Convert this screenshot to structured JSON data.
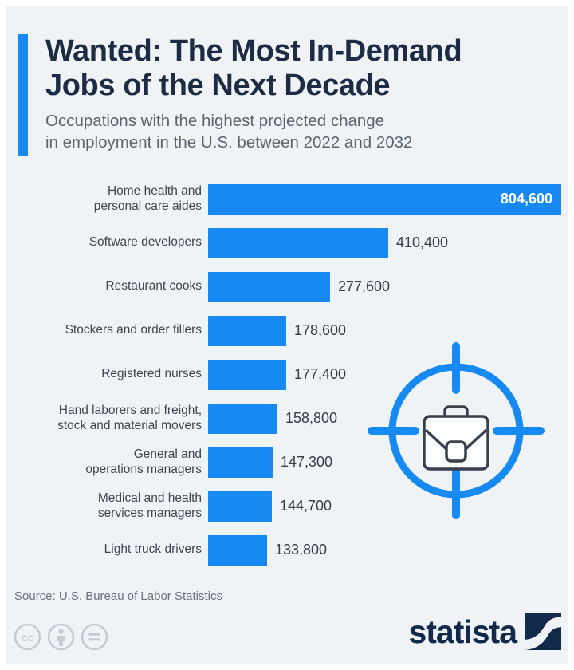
{
  "header": {
    "title": "Wanted: The Most In-Demand\nJobs of the Next Decade",
    "subtitle": "Occupations with the highest projected change\nin employment in the U.S. between 2022 and 2032"
  },
  "chart_data": {
    "type": "bar",
    "orientation": "horizontal",
    "title": "Wanted: The Most In-Demand Jobs of the Next Decade",
    "subtitle": "Occupations with the highest projected change in employment in the U.S. between 2022 and 2032",
    "categories": [
      "Home health and\npersonal care aides",
      "Software developers",
      "Restaurant cooks",
      "Stockers and order fillers",
      "Registered nurses",
      "Hand laborers and freight,\nstock and material movers",
      "General and\noperations managers",
      "Medical and health\nservices managers",
      "Light truck drivers"
    ],
    "values": [
      804600,
      410400,
      277600,
      178600,
      177400,
      158800,
      147300,
      144700,
      133800
    ],
    "value_labels": [
      "804,600",
      "410,400",
      "277,600",
      "178,600",
      "177,400",
      "158,800",
      "147,300",
      "144,700",
      "133,800"
    ],
    "xlabel": "",
    "ylabel": "",
    "xlim": [
      0,
      804600
    ],
    "grid": false,
    "legend": false,
    "bar_color": "#1789f2",
    "value_label_color": "#353d47",
    "value_label_inside_color": "#ffffff"
  },
  "decorations": {
    "icon": "crosshair-target-briefcase-icon",
    "icon_color": "#1789f2",
    "briefcase_outline_color": "#39414c"
  },
  "footer": {
    "source": "Source: U.S. Bureau of Labor Statistics",
    "license_icons": [
      "cc-icon",
      "attribution-person-icon",
      "no-derivatives-equals-icon"
    ],
    "brand": "statista"
  },
  "colors": {
    "accent_blue": "#1789f2",
    "title_navy": "#1d2c44",
    "subtitle_gray": "#5a6570",
    "background": "#f0f3f6",
    "logo_navy": "#13294b",
    "license_gray": "#c6cbd3"
  }
}
